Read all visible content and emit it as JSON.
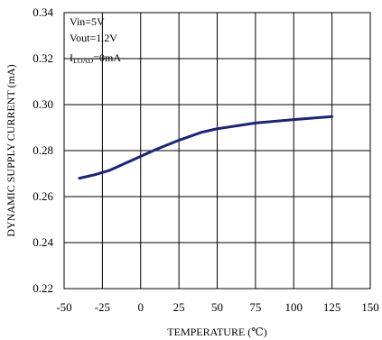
{
  "chart_data": {
    "type": "line",
    "title": "",
    "xlabel": "TEMPERATURE (℃)",
    "ylabel": "DYNAMIC SUPPLY CURRENT (mA)",
    "xlim": [
      -50,
      150
    ],
    "ylim": [
      0.22,
      0.34
    ],
    "x_ticks": [
      -50,
      -25,
      0,
      25,
      50,
      75,
      100,
      125,
      150
    ],
    "y_ticks": [
      0.22,
      0.24,
      0.26,
      0.28,
      0.3,
      0.32,
      0.34
    ],
    "x_tick_labels": [
      "-50",
      "-25",
      "0",
      "25",
      "50",
      "75",
      "100",
      "125",
      "150"
    ],
    "y_tick_labels": [
      "0.22",
      "0.24",
      "0.26",
      "0.28",
      "0.30",
      "0.32",
      "0.34"
    ],
    "grid": true,
    "line_color": "#1a237e",
    "series": [
      {
        "x": [
          -40,
          -30,
          -20,
          -10,
          0,
          10,
          25,
          40,
          50,
          75,
          100,
          125
        ],
        "y": [
          0.268,
          0.2695,
          0.2715,
          0.2745,
          0.2775,
          0.2805,
          0.2845,
          0.288,
          0.2895,
          0.292,
          0.2935,
          0.2948
        ]
      }
    ],
    "annotations": {
      "line1": "Vin=5V",
      "line2": "Vout=1.2V",
      "line3_main": "I",
      "line3_sub": "LOAD",
      "line3_rest": "=0mA"
    }
  }
}
